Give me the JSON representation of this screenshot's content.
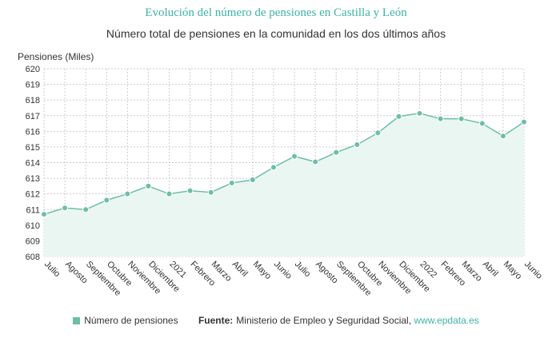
{
  "header": {
    "title": "Evolución del número de pensiones en Castilla y León",
    "subtitle": "Número total de pensiones en la comunidad en los dos últimos años"
  },
  "colors": {
    "series": "#6dbf9f",
    "area_fill": "#eaf6f2",
    "grid": "#cccccc",
    "title": "#3db3a8",
    "link": "#3db3a8"
  },
  "chart_data": {
    "type": "area",
    "title": "Evolución del número de pensiones en Castilla y León",
    "subtitle": "Número total de pensiones en la comunidad en los dos últimos años",
    "ylabel": "Pensiones (Miles)",
    "xlabel": "",
    "ylim": [
      608,
      620
    ],
    "yticks": [
      608,
      609,
      610,
      611,
      612,
      613,
      614,
      615,
      616,
      617,
      618,
      619,
      620
    ],
    "grid": true,
    "categories": [
      "Julio",
      "Agosto",
      "Septiembre",
      "Octubre",
      "Noviembre",
      "Diciembre",
      "2021",
      "Febrero",
      "Marzo",
      "Abril",
      "Mayo",
      "Junio",
      "Julio",
      "Agosto",
      "Septiembre",
      "Octubre",
      "Noviembre",
      "Diciembre",
      "2022",
      "Febrero",
      "Marzo",
      "Abril",
      "Mayo",
      "Junio"
    ],
    "series": [
      {
        "name": "Número de pensiones",
        "values": [
          610.7,
          611.1,
          611.0,
          611.6,
          612.0,
          612.5,
          612.0,
          612.2,
          612.1,
          612.7,
          612.9,
          613.7,
          614.4,
          614.05,
          614.65,
          615.15,
          615.9,
          616.95,
          617.15,
          616.8,
          616.8,
          616.5,
          615.7,
          616.6
        ]
      }
    ]
  },
  "legend": {
    "label": "Número de pensiones"
  },
  "footer": {
    "source_label": "Fuente:",
    "source_text": "Ministerio de Empleo y Seguridad Social,",
    "source_link": "www.epdata.es"
  }
}
